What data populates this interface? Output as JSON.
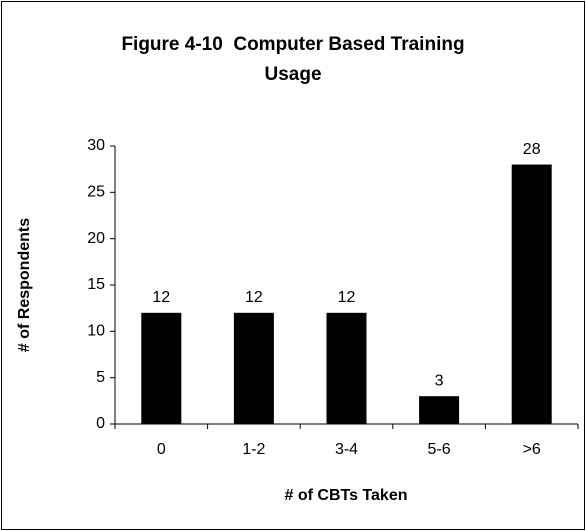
{
  "chart_data": {
    "type": "bar",
    "title": "Figure 4-10  Computer Based Training Usage",
    "categories": [
      "0",
      "1-2",
      "3-4",
      "5-6",
      ">6"
    ],
    "values": [
      12,
      12,
      12,
      3,
      28
    ],
    "color": "#000000",
    "ylim": [
      0,
      30
    ],
    "yticks": [
      0,
      5,
      10,
      15,
      20,
      25,
      30
    ],
    "y_label": "# of Respondents",
    "x_label": "# of CBTs Taken",
    "grid": false
  }
}
